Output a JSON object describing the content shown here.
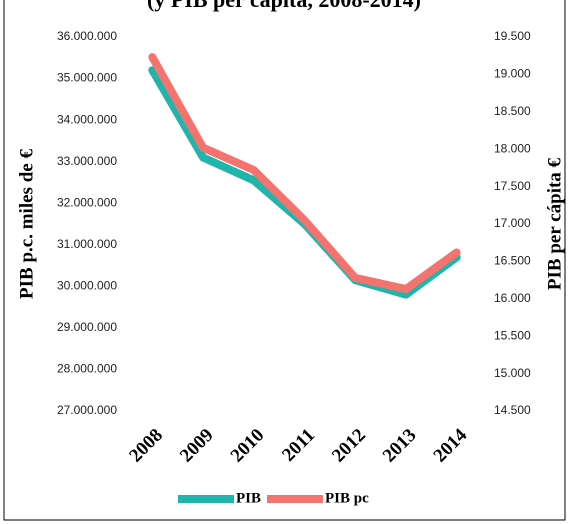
{
  "chart_data": {
    "type": "line",
    "title": "(y PIB per cápita, 2008-2014)",
    "ylabel": "PIB p.c. miles de €",
    "y2label": "PIB per cápita €",
    "categories": [
      "2008",
      "2009",
      "2010",
      "2011",
      "2012",
      "2013",
      "2014"
    ],
    "series": [
      {
        "name": "PIB",
        "color": "#1fb5ad",
        "values": [
          35200000,
          33100000,
          32550000,
          31500000,
          30150000,
          29800000,
          30700000
        ]
      },
      {
        "name": "PIB pc",
        "color": "#f4736f",
        "axis": "y2",
        "values": [
          19230,
          18020,
          17720,
          17050,
          16280,
          16130,
          16620
        ]
      }
    ],
    "ylim": [
      27000000,
      36000000
    ],
    "yticks": [
      {
        "value": 27000000,
        "label": "27.000.000"
      },
      {
        "value": 28000000,
        "label": "28.000.000"
      },
      {
        "value": 29000000,
        "label": "29.000.000"
      },
      {
        "value": 30000000,
        "label": "30.000.000"
      },
      {
        "value": 31000000,
        "label": "31.000.000"
      },
      {
        "value": 32000000,
        "label": "32.000.000"
      },
      {
        "value": 33000000,
        "label": "33.000.000"
      },
      {
        "value": 34000000,
        "label": "34.000.000"
      },
      {
        "value": 35000000,
        "label": "35.000.000"
      },
      {
        "value": 36000000,
        "label": "36.000.000"
      }
    ],
    "y2lim": [
      14500,
      19500
    ],
    "y2ticks": [
      {
        "value": 14500,
        "label": "14.500"
      },
      {
        "value": 15000,
        "label": "15.000"
      },
      {
        "value": 15500,
        "label": "15.500"
      },
      {
        "value": 16000,
        "label": "16.000"
      },
      {
        "value": 16500,
        "label": "16.500"
      },
      {
        "value": 17000,
        "label": "17.000"
      },
      {
        "value": 17500,
        "label": "17.500"
      },
      {
        "value": 18000,
        "label": "18.000"
      },
      {
        "value": 18500,
        "label": "18.500"
      },
      {
        "value": 19000,
        "label": "19.000"
      },
      {
        "value": 19500,
        "label": "19.500"
      }
    ],
    "legend": "bottom"
  }
}
